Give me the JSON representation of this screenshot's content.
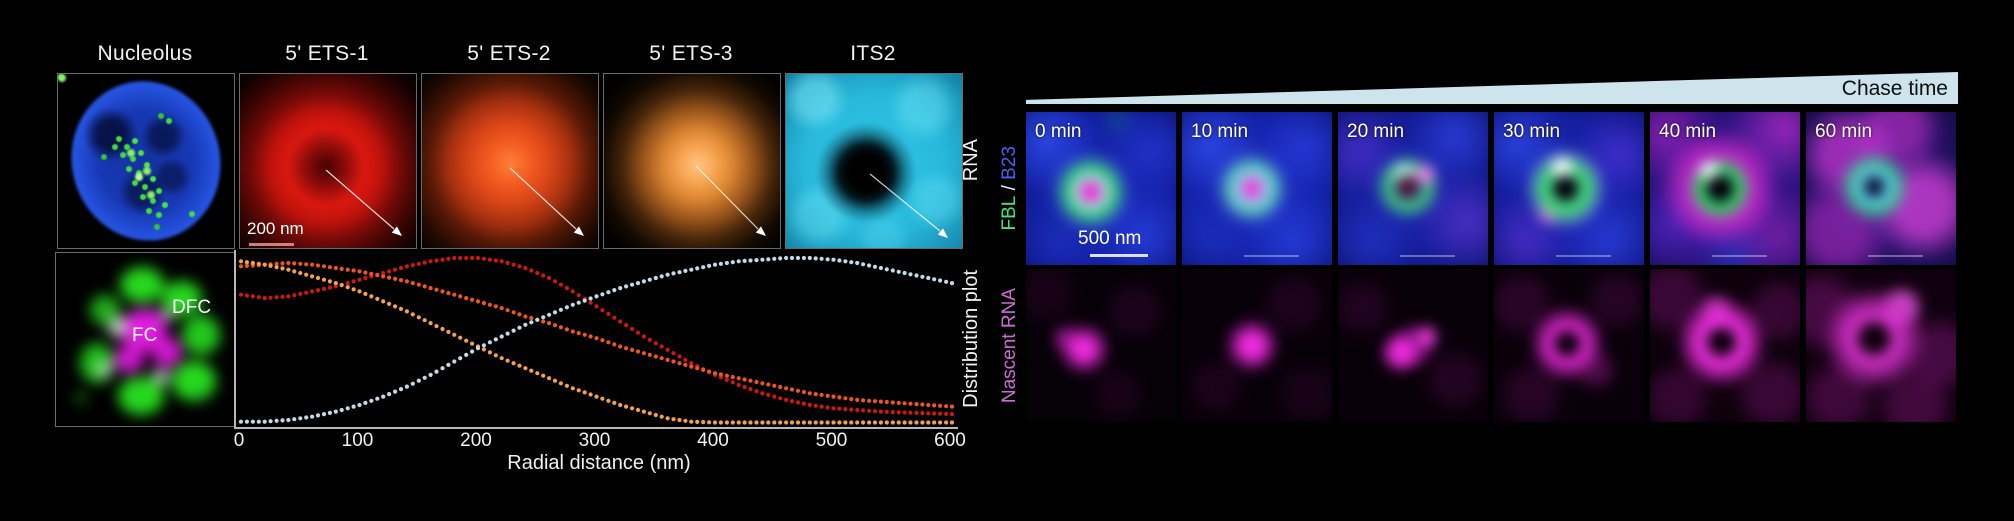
{
  "left": {
    "panels": [
      {
        "title": "Nucleolus"
      },
      {
        "title": "5' ETS-1",
        "scale_bar": "200 nm"
      },
      {
        "title": "5' ETS-2"
      },
      {
        "title": "5' ETS-3"
      },
      {
        "title": "ITS2"
      }
    ],
    "row_label": "RNA",
    "fc_panel": {
      "dfc_label": "DFC",
      "fc_label": "FC"
    }
  },
  "chart_data": {
    "type": "scatter",
    "marker": "dot",
    "title": "",
    "xlabel": "Radial distance (nm)",
    "ylabel": "Distribution plot",
    "xlim": [
      0,
      600
    ],
    "ylim": [
      0,
      1.05
    ],
    "xticks": [
      "0",
      "100",
      "200",
      "300",
      "400",
      "500",
      "600"
    ],
    "grid": false,
    "legend": "none",
    "dot_step_nm": 5,
    "x": [
      0,
      20,
      40,
      60,
      80,
      100,
      120,
      140,
      160,
      180,
      200,
      220,
      240,
      260,
      280,
      300,
      320,
      340,
      360,
      380,
      400,
      420,
      440,
      460,
      480,
      500,
      520,
      540,
      560,
      580,
      600
    ],
    "series": [
      {
        "name": "5' ETS-1",
        "color": "#d01712",
        "values": [
          0.78,
          0.76,
          0.77,
          0.8,
          0.83,
          0.87,
          0.91,
          0.95,
          0.98,
          1.0,
          1.0,
          0.98,
          0.94,
          0.88,
          0.8,
          0.71,
          0.62,
          0.53,
          0.45,
          0.37,
          0.3,
          0.24,
          0.19,
          0.15,
          0.12,
          0.1,
          0.09,
          0.08,
          0.075,
          0.07,
          0.065
        ]
      },
      {
        "name": "5' ETS-2",
        "color": "#ee561e",
        "values": [
          0.95,
          0.96,
          0.97,
          0.96,
          0.94,
          0.92,
          0.89,
          0.86,
          0.82,
          0.78,
          0.74,
          0.7,
          0.65,
          0.61,
          0.56,
          0.52,
          0.47,
          0.43,
          0.39,
          0.35,
          0.31,
          0.28,
          0.25,
          0.22,
          0.19,
          0.17,
          0.15,
          0.14,
          0.13,
          0.12,
          0.11
        ]
      },
      {
        "name": "5' ETS-3",
        "color": "#f5a24a",
        "values": [
          0.98,
          0.96,
          0.93,
          0.89,
          0.85,
          0.8,
          0.74,
          0.68,
          0.61,
          0.54,
          0.47,
          0.4,
          0.34,
          0.28,
          0.22,
          0.17,
          0.12,
          0.08,
          0.04,
          0.02,
          0.015,
          0.015,
          0.015,
          0.015,
          0.015,
          0.015,
          0.015,
          0.015,
          0.015,
          0.015,
          0.015
        ]
      },
      {
        "name": "ITS2",
        "color": "#c3dbe6",
        "values": [
          0.02,
          0.02,
          0.03,
          0.05,
          0.08,
          0.12,
          0.17,
          0.23,
          0.3,
          0.38,
          0.46,
          0.53,
          0.6,
          0.66,
          0.72,
          0.77,
          0.82,
          0.86,
          0.9,
          0.93,
          0.96,
          0.98,
          0.99,
          1.0,
          1.0,
          0.99,
          0.97,
          0.94,
          0.91,
          0.88,
          0.85
        ]
      }
    ]
  },
  "right": {
    "chase_time_label": "Chase time",
    "wedge_color": "#cde4ec",
    "row1_label_parts": [
      {
        "text": "FBL",
        "color": "#3fe87e"
      },
      {
        "text": " / ",
        "color": "#e8f0ff"
      },
      {
        "text": "B23",
        "color": "#4b5ef5"
      }
    ],
    "row2_label": {
      "text": "Nascent RNA",
      "color": "#d06ad8"
    },
    "timepoints": [
      "0 min",
      "10 min",
      "20 min",
      "30 min",
      "40 min",
      "60 min"
    ],
    "scale_bar": "500 nm"
  }
}
